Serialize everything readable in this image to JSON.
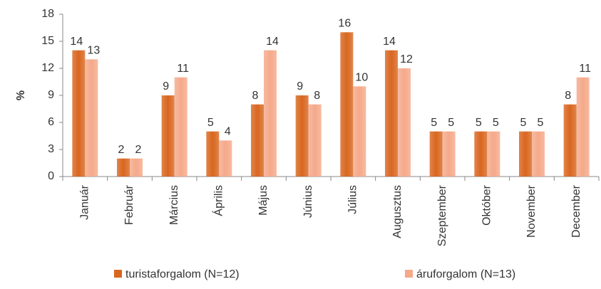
{
  "chart_data": {
    "type": "bar",
    "ylabel": "%",
    "categories": [
      "Január",
      "Február",
      "Március",
      "Április",
      "Május",
      "Június",
      "Július",
      "Augusztus",
      "Szeptember",
      "Október",
      "November",
      "December"
    ],
    "series": [
      {
        "name": "turistaforgalom (N=12)",
        "color": "#d9661f",
        "values": [
          14,
          2,
          9,
          5,
          8,
          9,
          16,
          14,
          5,
          5,
          5,
          8
        ]
      },
      {
        "name": "áruforgalom (N=13)",
        "color": "#f5a98a",
        "values": [
          13,
          2,
          11,
          4,
          14,
          8,
          10,
          12,
          5,
          5,
          5,
          11
        ]
      }
    ],
    "ylim": [
      0,
      18
    ],
    "yticks": [
      0,
      3,
      6,
      9,
      12,
      15,
      18
    ],
    "grid": false,
    "legend": "bottom"
  }
}
